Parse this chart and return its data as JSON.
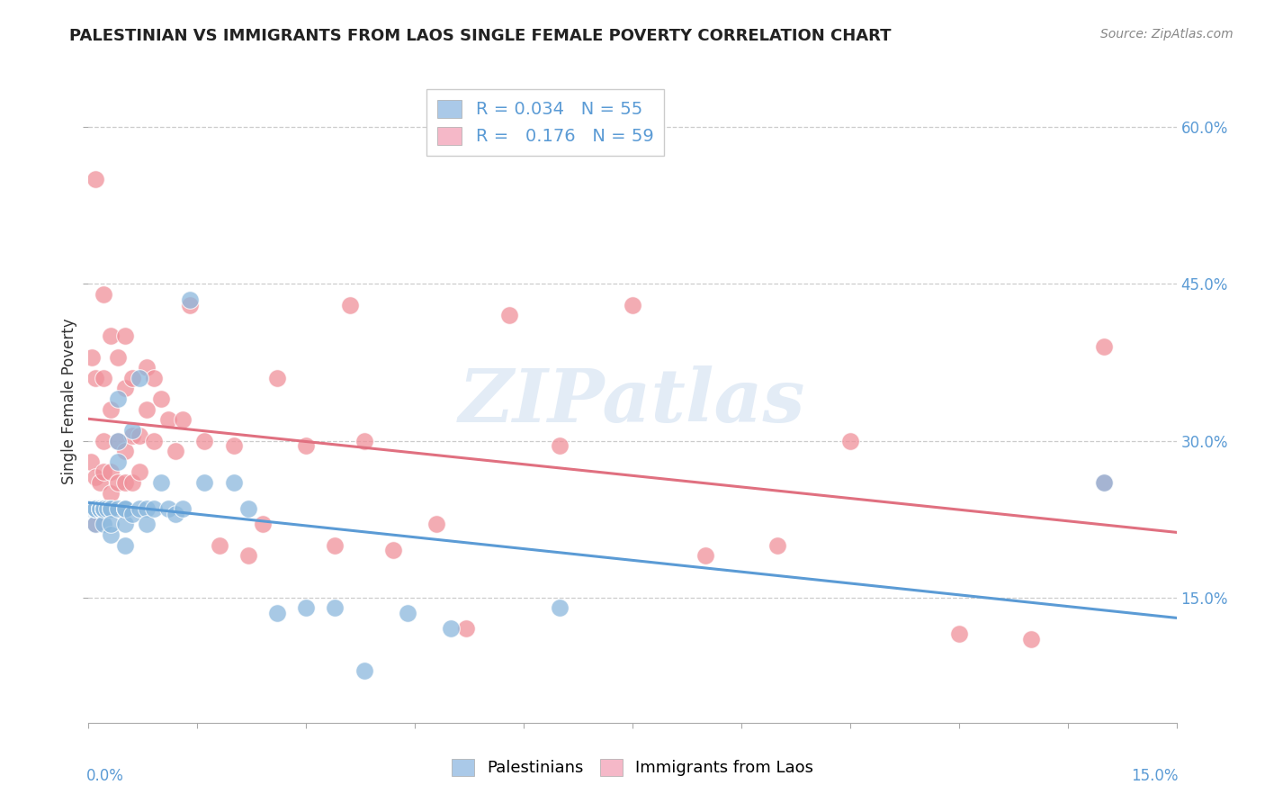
{
  "title": "PALESTINIAN VS IMMIGRANTS FROM LAOS SINGLE FEMALE POVERTY CORRELATION CHART",
  "source": "Source: ZipAtlas.com",
  "ylabel": "Single Female Poverty",
  "ytick_vals": [
    0.15,
    0.3,
    0.45,
    0.6
  ],
  "xmin": 0.0,
  "xmax": 0.15,
  "ymin": 0.03,
  "ymax": 0.645,
  "watermark": "ZIPatlas",
  "legend_R_N": [
    {
      "R": "0.034",
      "N": "55",
      "face": "#aac9e8"
    },
    {
      "R": "0.176",
      "N": "59",
      "face": "#f5b8c8"
    }
  ],
  "palestinians_color": "#8bb8dd",
  "laos_color": "#f0909a",
  "palestinians_line_color": "#5b9bd5",
  "laos_line_color": "#e07080",
  "palestinians_x": [
    0.0003,
    0.0005,
    0.0007,
    0.0008,
    0.001,
    0.001,
    0.001,
    0.001,
    0.001,
    0.0015,
    0.0015,
    0.0015,
    0.002,
    0.002,
    0.002,
    0.002,
    0.002,
    0.002,
    0.0025,
    0.003,
    0.003,
    0.003,
    0.003,
    0.004,
    0.004,
    0.004,
    0.004,
    0.005,
    0.005,
    0.005,
    0.005,
    0.005,
    0.006,
    0.006,
    0.007,
    0.007,
    0.008,
    0.008,
    0.009,
    0.01,
    0.011,
    0.012,
    0.013,
    0.014,
    0.016,
    0.02,
    0.022,
    0.026,
    0.03,
    0.034,
    0.038,
    0.044,
    0.05,
    0.065,
    0.14
  ],
  "palestinians_y": [
    0.235,
    0.235,
    0.235,
    0.235,
    0.22,
    0.235,
    0.235,
    0.235,
    0.235,
    0.235,
    0.235,
    0.235,
    0.235,
    0.235,
    0.235,
    0.235,
    0.22,
    0.235,
    0.235,
    0.235,
    0.21,
    0.235,
    0.22,
    0.3,
    0.235,
    0.28,
    0.34,
    0.235,
    0.22,
    0.235,
    0.235,
    0.2,
    0.23,
    0.31,
    0.235,
    0.36,
    0.235,
    0.22,
    0.235,
    0.26,
    0.235,
    0.23,
    0.235,
    0.435,
    0.26,
    0.26,
    0.235,
    0.135,
    0.14,
    0.14,
    0.08,
    0.135,
    0.12,
    0.14,
    0.26
  ],
  "laos_x": [
    0.0003,
    0.0005,
    0.001,
    0.001,
    0.001,
    0.001,
    0.0015,
    0.002,
    0.002,
    0.002,
    0.002,
    0.003,
    0.003,
    0.003,
    0.003,
    0.004,
    0.004,
    0.004,
    0.005,
    0.005,
    0.005,
    0.005,
    0.006,
    0.006,
    0.006,
    0.007,
    0.007,
    0.008,
    0.008,
    0.009,
    0.009,
    0.01,
    0.011,
    0.012,
    0.013,
    0.014,
    0.016,
    0.018,
    0.02,
    0.022,
    0.024,
    0.026,
    0.03,
    0.034,
    0.036,
    0.038,
    0.042,
    0.048,
    0.052,
    0.058,
    0.065,
    0.075,
    0.085,
    0.095,
    0.105,
    0.12,
    0.13,
    0.14,
    0.14
  ],
  "laos_y": [
    0.28,
    0.38,
    0.22,
    0.265,
    0.36,
    0.55,
    0.26,
    0.27,
    0.3,
    0.36,
    0.44,
    0.25,
    0.27,
    0.33,
    0.4,
    0.26,
    0.3,
    0.38,
    0.26,
    0.29,
    0.35,
    0.4,
    0.26,
    0.305,
    0.36,
    0.27,
    0.305,
    0.33,
    0.37,
    0.3,
    0.36,
    0.34,
    0.32,
    0.29,
    0.32,
    0.43,
    0.3,
    0.2,
    0.295,
    0.19,
    0.22,
    0.36,
    0.295,
    0.2,
    0.43,
    0.3,
    0.195,
    0.22,
    0.12,
    0.42,
    0.295,
    0.43,
    0.19,
    0.2,
    0.3,
    0.115,
    0.11,
    0.39,
    0.26
  ]
}
